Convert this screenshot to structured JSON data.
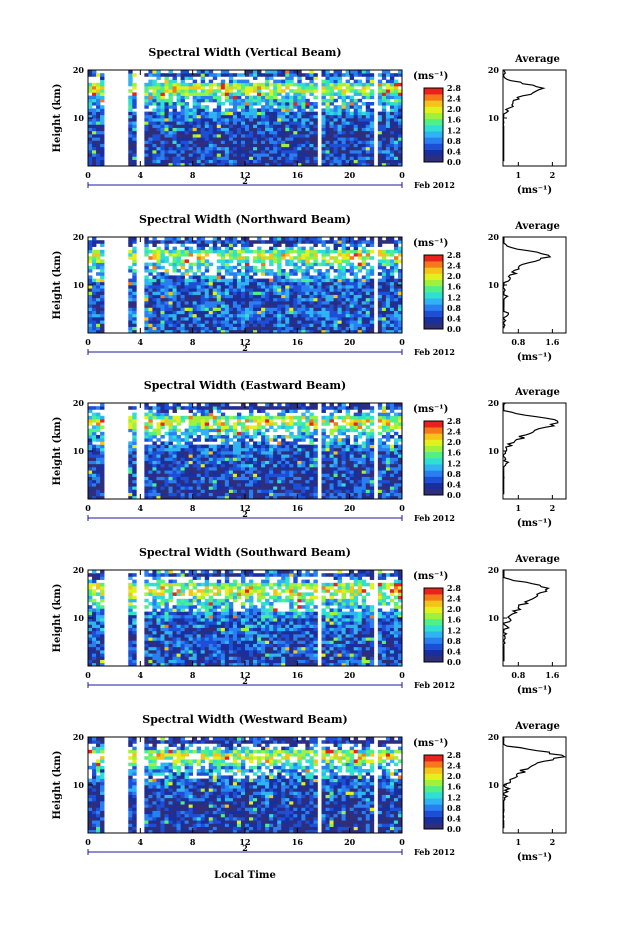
{
  "xlabel": "Local Time",
  "date_label": "Feb 2012",
  "day_marker": "2",
  "colorbar": {
    "unit_label": "(ms⁻¹)",
    "tick_labels": [
      "0.0",
      "0.4",
      "0.8",
      "1.2",
      "1.6",
      "2.0",
      "2.4",
      "2.8"
    ],
    "colors": [
      "#2e2e7a",
      "#1a2f9e",
      "#1d4fd6",
      "#2a7ff0",
      "#2fb3f2",
      "#2fe0d2",
      "#4ff088",
      "#9ef23e",
      "#e3f020",
      "#f5c31a",
      "#f5781a",
      "#e8221c"
    ]
  },
  "chart_data": [
    {
      "type": "heatmap",
      "title": "Spectral Width (Vertical Beam)",
      "ylabel": "Height (km)",
      "x_ticks": [
        "0",
        "4",
        "8",
        "12",
        "16",
        "20",
        "0"
      ],
      "y_ticks": [
        "10",
        "20"
      ],
      "colorbar_range": [
        0.0,
        2.8
      ],
      "data_gaps_local_time_h": [
        [
          1.3,
          3.0
        ],
        [
          3.7,
          4.2
        ],
        [
          17.6,
          17.9
        ],
        [
          21.9,
          22.3
        ]
      ],
      "profile": {
        "title": "Average",
        "xlabel": "(ms⁻¹)",
        "x_ticks": [
          "1",
          "2"
        ],
        "y_ticks": [
          "10",
          "20"
        ],
        "height_km": [
          2,
          4,
          6,
          8,
          10,
          12,
          14,
          15,
          16,
          17,
          18,
          19,
          20
        ],
        "values": [
          0.35,
          0.4,
          0.3,
          0.45,
          0.5,
          0.75,
          0.95,
          1.3,
          1.75,
          1.3,
          0.7,
          0.5,
          0.6
        ]
      }
    },
    {
      "type": "heatmap",
      "title": "Spectral Width (Northward Beam)",
      "ylabel": "Height (km)",
      "x_ticks": [
        "0",
        "4",
        "8",
        "12",
        "16",
        "20",
        "0"
      ],
      "y_ticks": [
        "10",
        "20"
      ],
      "colorbar_range": [
        0.0,
        2.8
      ],
      "data_gaps_local_time_h": [
        [
          1.3,
          3.0
        ],
        [
          3.7,
          4.2
        ],
        [
          21.9,
          22.3
        ]
      ],
      "profile": {
        "title": "Average",
        "xlabel": "(ms⁻¹)",
        "x_ticks": [
          "0.8",
          "1.6"
        ],
        "y_ticks": [
          "10",
          "20"
        ],
        "height_km": [
          2,
          4,
          6,
          8,
          10,
          12,
          14,
          15,
          16,
          17,
          18,
          19,
          20
        ],
        "values": [
          0.4,
          0.5,
          0.3,
          0.5,
          0.45,
          0.65,
          0.85,
          1.2,
          1.5,
          1.1,
          0.55,
          0.3,
          0.35
        ]
      }
    },
    {
      "type": "heatmap",
      "title": "Spectral Width (Eastward Beam)",
      "ylabel": "Height (km)",
      "x_ticks": [
        "0",
        "4",
        "8",
        "12",
        "16",
        "20",
        "0"
      ],
      "y_ticks": [
        "10",
        "20"
      ],
      "colorbar_range": [
        0.0,
        2.8
      ],
      "data_gaps_local_time_h": [
        [
          1.3,
          3.0
        ],
        [
          3.7,
          4.2
        ],
        [
          17.6,
          17.9
        ],
        [
          21.9,
          22.3
        ]
      ],
      "profile": {
        "title": "Average",
        "xlabel": "(ms⁻¹)",
        "x_ticks": [
          "1",
          "2"
        ],
        "y_ticks": [
          "10",
          "20"
        ],
        "height_km": [
          2,
          4,
          6,
          8,
          10,
          12,
          14,
          15,
          16,
          17,
          18,
          19,
          20
        ],
        "values": [
          0.4,
          0.5,
          0.45,
          0.6,
          0.65,
          0.9,
          1.35,
          1.8,
          2.3,
          1.8,
          0.8,
          0.45,
          0.5
        ]
      }
    },
    {
      "type": "heatmap",
      "title": "Spectral Width (Southward Beam)",
      "ylabel": "Height (km)",
      "x_ticks": [
        "0",
        "4",
        "8",
        "12",
        "16",
        "20",
        "0"
      ],
      "y_ticks": [
        "10",
        "20"
      ],
      "colorbar_range": [
        0.0,
        2.8
      ],
      "data_gaps_local_time_h": [
        [
          1.3,
          3.0
        ],
        [
          3.7,
          4.2
        ],
        [
          17.6,
          17.9
        ],
        [
          21.9,
          22.3
        ]
      ],
      "profile": {
        "title": "Average",
        "xlabel": "(ms⁻¹)",
        "x_ticks": [
          "0.8",
          "1.6"
        ],
        "y_ticks": [
          "10",
          "20"
        ],
        "height_km": [
          2,
          4,
          6,
          8,
          10,
          12,
          14,
          15,
          16,
          17,
          18,
          19,
          20
        ],
        "values": [
          0.35,
          0.45,
          0.4,
          0.5,
          0.55,
          0.8,
          1.05,
          1.3,
          1.5,
          1.2,
          0.6,
          0.35,
          0.4
        ]
      }
    },
    {
      "type": "heatmap",
      "title": "Spectral Width (Westward Beam)",
      "ylabel": "Height (km)",
      "x_ticks": [
        "0",
        "4",
        "8",
        "12",
        "16",
        "20",
        "0"
      ],
      "y_ticks": [
        "10",
        "20"
      ],
      "colorbar_range": [
        0.0,
        2.8
      ],
      "data_gaps_local_time_h": [
        [
          1.3,
          3.0
        ],
        [
          3.7,
          4.2
        ],
        [
          17.6,
          17.9
        ],
        [
          21.9,
          22.3
        ]
      ],
      "profile": {
        "title": "Average",
        "xlabel": "(ms⁻¹)",
        "x_ticks": [
          "1",
          "2"
        ],
        "y_ticks": [
          "10",
          "20"
        ],
        "height_km": [
          2,
          4,
          6,
          8,
          10,
          12,
          14,
          15,
          16,
          17,
          18,
          19,
          20
        ],
        "values": [
          0.4,
          0.5,
          0.45,
          0.6,
          0.65,
          0.95,
          1.4,
          1.9,
          2.4,
          1.7,
          0.7,
          0.4,
          0.45
        ]
      }
    }
  ]
}
